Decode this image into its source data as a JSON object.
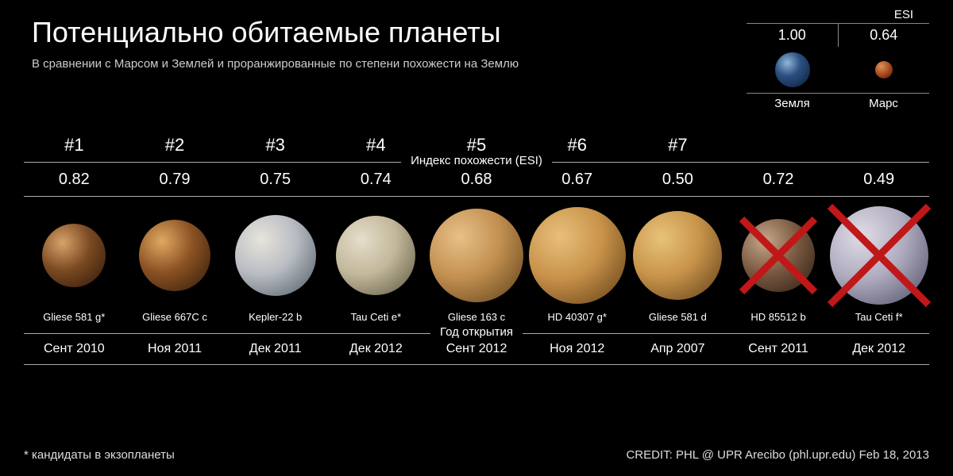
{
  "title": "Потенциально обитаемые планеты",
  "subtitle": "В сравнении с Марсом и Землей и проранжированные по степени похожести на Землю",
  "reference": {
    "esi_label": "ESI",
    "items": [
      {
        "name": "Земля",
        "esi": "1.00",
        "diameter": 44,
        "fill": "radial-gradient(circle at 35% 30%, #8fb6d8 0%, #2b4f82 40%, #0a1a30 100%)"
      },
      {
        "name": "Марс",
        "esi": "0.64",
        "diameter": 22,
        "fill": "radial-gradient(circle at 35% 30%, #e0915a 0%, #a0451a 55%, #3a1605 100%)"
      }
    ]
  },
  "section_labels": {
    "esi_index": "Индекс похожести (ESI)",
    "discovery_year": "Год открытия"
  },
  "planets": [
    {
      "rank": "#1",
      "esi": "0.82",
      "name": "Gliese 581 g*",
      "discovery": "Сент 2010",
      "diameter": 80,
      "fill": "radial-gradient(circle at 32% 30%, #d8a26a 0%, #7b4a22 45%, #2a1608 100%)",
      "excluded": false
    },
    {
      "rank": "#2",
      "esi": "0.79",
      "name": "Gliese 667C c",
      "discovery": "Ноя 2011",
      "diameter": 90,
      "fill": "radial-gradient(circle at 32% 30%, #e0a862 0%, #8a5223 45%, #2e1808 100%)",
      "excluded": false
    },
    {
      "rank": "#3",
      "esi": "0.75",
      "name": "Kepler-22 b",
      "discovery": "Дек  2011",
      "diameter": 102,
      "fill": "radial-gradient(circle at 32% 30%, #e8e4dc 0%, #b8bcc2 45%, #4a5560 100%)",
      "excluded": false
    },
    {
      "rank": "#4",
      "esi": "0.74",
      "name": "Tau Ceti e*",
      "discovery": "Дек 2012",
      "diameter": 100,
      "fill": "radial-gradient(circle at 32% 30%, #e6ddcc 0%, #c2b89a 45%, #5a5240 100%)",
      "excluded": false
    },
    {
      "rank": "#5",
      "esi": "0.68",
      "name": "Gliese 163 c",
      "discovery": "Сент 2012",
      "diameter": 118,
      "fill": "radial-gradient(circle at 32% 30%, #e8c088 0%, #c29050 45%, #5a3c18 100%)",
      "excluded": false
    },
    {
      "rank": "#6",
      "esi": "0.67",
      "name": "HD 40307 g*",
      "discovery": "Ноя 2012",
      "diameter": 122,
      "fill": "radial-gradient(circle at 32% 30%, #e8c07a 0%, #c8924a 45%, #5c3a14 100%)",
      "excluded": false
    },
    {
      "rank": "#7",
      "esi": "0.50",
      "name": "Gliese 581 d",
      "discovery": "Апр 2007",
      "diameter": 112,
      "fill": "radial-gradient(circle at 32% 30%, #e8c27a 0%, #c8944a 45%, #5c3c16 100%)",
      "excluded": false
    },
    {
      "rank": "",
      "esi": "0.72",
      "name": "HD 85512 b",
      "discovery": "Сент 2011",
      "diameter": 92,
      "fill": "radial-gradient(circle at 32% 30%, #c8a88a 0%, #7a5a42 45%, #2a1c10 100%)",
      "excluded": true
    },
    {
      "rank": "",
      "esi": "0.49",
      "name": "Tau Ceti f*",
      "discovery": "Дек 2012",
      "diameter": 124,
      "fill": "radial-gradient(circle at 32% 30%, #e0dce6 0%, #b0acc0 45%, #4a4860 100%)",
      "excluded": true
    }
  ],
  "excluded_x_color": "#c01818",
  "footnote": "*  кандидаты в экзопланеты",
  "credit": "CREDIT: PHL @ UPR Arecibo (phl.upr.edu) Feb 18, 2013",
  "style": {
    "background": "#000000",
    "text_color": "#ffffff",
    "rule_color": "#aaaaaa",
    "title_fontsize": 36,
    "subtitle_fontsize": 15,
    "rank_fontsize": 22,
    "esi_fontsize": 20,
    "name_fontsize": 13,
    "discovery_fontsize": 16
  }
}
